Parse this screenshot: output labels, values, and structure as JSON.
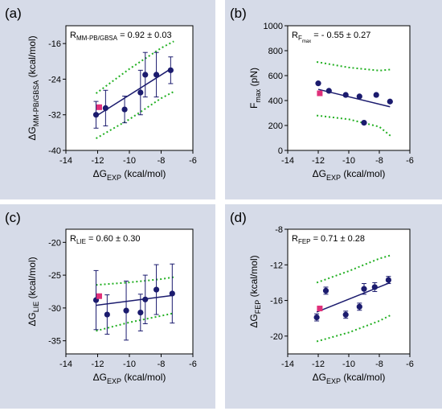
{
  "chart_data": [
    {
      "type": "scatter",
      "panel_label": "(a)",
      "annotation": {
        "main": "R",
        "sub": "MM-PB/GBSA",
        "value": " = 0.92  ± 0.03"
      },
      "xlabel": {
        "main": "ΔG",
        "sub": "EXP",
        "suffix": " (kcal/mol)"
      },
      "ylabel": {
        "main": "ΔG",
        "sub": "MM-PB/GBSA",
        "suffix": " (kcal/mol)"
      },
      "xlim": [
        -14,
        -6
      ],
      "ylim": [
        -40,
        -12
      ],
      "xticks": [
        "-14",
        "-12",
        "-10",
        "-8",
        "-6"
      ],
      "yticks": [
        "-40",
        "-32",
        "-24",
        "-16"
      ],
      "points": [
        {
          "x": -12.1,
          "y": -32.0,
          "err": 3
        },
        {
          "x": -11.5,
          "y": -30.5,
          "err": 4
        },
        {
          "x": -10.3,
          "y": -30.8,
          "err": 3
        },
        {
          "x": -9.3,
          "y": -27.0,
          "err": 5
        },
        {
          "x": -9.0,
          "y": -23.0,
          "err": 5
        },
        {
          "x": -8.3,
          "y": -23.0,
          "err": 5
        },
        {
          "x": -7.4,
          "y": -22.0,
          "err": 3
        }
      ],
      "highlight": [
        {
          "x": -11.9,
          "y": -30.3
        }
      ],
      "fit": {
        "x": [
          -12.1,
          -7.4
        ],
        "y": [
          -32.3,
          -21.7
        ]
      },
      "band_upper": {
        "x": [
          -12.1,
          -10.0,
          -8.0,
          -7.2
        ],
        "y": [
          -27.2,
          -21.7,
          -17.0,
          -15.5
        ]
      },
      "band_lower": {
        "x": [
          -12.1,
          -10.0,
          -8.0,
          -7.2
        ],
        "y": [
          -37.3,
          -33.0,
          -28.3,
          -26.8
        ]
      }
    },
    {
      "type": "scatter",
      "panel_label": "(b)",
      "annotation": {
        "main": "R",
        "sub": "F",
        "sub2": "max",
        "value": " = - 0.55  ± 0.27"
      },
      "xlabel": {
        "main": "ΔG",
        "sub": "EXP",
        "suffix": " (kcal/mol)"
      },
      "ylabel": {
        "main": "F",
        "sub": "max",
        "suffix": " (pN)"
      },
      "xlim": [
        -14,
        -6
      ],
      "ylim": [
        0,
        1000
      ],
      "xticks": [
        "-14",
        "-12",
        "-10",
        "-8",
        "-6"
      ],
      "yticks": [
        "0",
        "200",
        "400",
        "600",
        "800",
        "1000"
      ],
      "points": [
        {
          "x": -12.0,
          "y": 538
        },
        {
          "x": -11.3,
          "y": 478
        },
        {
          "x": -10.2,
          "y": 445
        },
        {
          "x": -9.3,
          "y": 433
        },
        {
          "x": -9.0,
          "y": 222
        },
        {
          "x": -8.2,
          "y": 445
        },
        {
          "x": -7.3,
          "y": 392
        }
      ],
      "highlight": [
        {
          "x": -11.9,
          "y": 458
        }
      ],
      "fit": {
        "x": [
          -12.0,
          -7.3
        ],
        "y": [
          490,
          350
        ]
      },
      "band_upper": {
        "x": [
          -12.1,
          -10.0,
          -8.0,
          -7.2
        ],
        "y": [
          710,
          665,
          640,
          650
        ]
      },
      "band_lower": {
        "x": [
          -12.1,
          -10.0,
          -8.0,
          -7.2
        ],
        "y": [
          280,
          250,
          190,
          110
        ]
      }
    },
    {
      "type": "scatter",
      "panel_label": "(c)",
      "annotation": {
        "main": "R",
        "sub": "LIE",
        "value": " = 0.60  ± 0.30"
      },
      "xlabel": {
        "main": "ΔG",
        "sub": "EXP",
        "suffix": " (kcal/mol)"
      },
      "ylabel": {
        "main": "ΔG",
        "sub": "LIE",
        "suffix": " (kcal/mol)"
      },
      "xlim": [
        -14,
        -6
      ],
      "ylim": [
        -37,
        -18
      ],
      "xticks": [
        "-14",
        "-12",
        "-10",
        "-8",
        "-6"
      ],
      "yticks": [
        "-35",
        "-30",
        "-25",
        "-20"
      ],
      "points": [
        {
          "x": -12.1,
          "y": -28.8,
          "err": 4.5
        },
        {
          "x": -11.4,
          "y": -31.0,
          "err": 3.0
        },
        {
          "x": -10.2,
          "y": -30.4,
          "err": 4.5
        },
        {
          "x": -9.3,
          "y": -30.7,
          "err": 2.8
        },
        {
          "x": -9.0,
          "y": -28.7,
          "err": 3.7
        },
        {
          "x": -8.3,
          "y": -27.2,
          "err": 3.8
        },
        {
          "x": -7.3,
          "y": -27.8,
          "err": 4.5
        }
      ],
      "highlight": [
        {
          "x": -11.9,
          "y": -28.2
        }
      ],
      "fit": {
        "x": [
          -12.1,
          -7.3
        ],
        "y": [
          -29.6,
          -28.1
        ]
      },
      "band_upper": {
        "x": [
          -12.1,
          -10.0,
          -8.0,
          -7.2
        ],
        "y": [
          -26.5,
          -26.1,
          -25.6,
          -25.3
        ]
      },
      "band_lower": {
        "x": [
          -12.1,
          -10.0,
          -8.0,
          -7.2
        ],
        "y": [
          -33.5,
          -32.2,
          -31.2,
          -30.8
        ]
      }
    },
    {
      "type": "scatter",
      "panel_label": "(d)",
      "annotation": {
        "main": "R",
        "sub": "FEP",
        "value": " = 0.71  ± 0.28"
      },
      "xlabel": {
        "main": "ΔG",
        "sub": "EXP",
        "suffix": " (kcal/mol)"
      },
      "ylabel": {
        "main": "ΔG",
        "sub": "FEP",
        "suffix": " (kcal/mol)"
      },
      "xlim": [
        -14,
        -6
      ],
      "ylim": [
        -22,
        -8
      ],
      "xticks": [
        "-14",
        "-12",
        "-10",
        "-8",
        "-6"
      ],
      "yticks": [
        "-20",
        "-16",
        "-12",
        "-8"
      ],
      "points": [
        {
          "x": -12.1,
          "y": -17.9,
          "err": 0.4
        },
        {
          "x": -11.5,
          "y": -14.9,
          "err": 0.4
        },
        {
          "x": -10.2,
          "y": -17.6,
          "err": 0.4
        },
        {
          "x": -9.3,
          "y": -16.7,
          "err": 0.4
        },
        {
          "x": -9.0,
          "y": -14.7,
          "err": 0.6
        },
        {
          "x": -8.3,
          "y": -14.5,
          "err": 0.5
        },
        {
          "x": -7.4,
          "y": -13.7,
          "err": 0.4
        }
      ],
      "highlight": [
        {
          "x": -11.9,
          "y": -16.9
        }
      ],
      "fit": {
        "x": [
          -12.1,
          -7.3
        ],
        "y": [
          -17.3,
          -14.0
        ]
      },
      "band_upper": {
        "x": [
          -12.1,
          -10.0,
          -8.0,
          -7.2
        ],
        "y": [
          -14.0,
          -12.7,
          -11.3,
          -10.9
        ]
      },
      "band_lower": {
        "x": [
          -12.1,
          -10.0,
          -8.0,
          -7.2
        ],
        "y": [
          -20.6,
          -19.6,
          -18.3,
          -17.6
        ]
      }
    }
  ]
}
